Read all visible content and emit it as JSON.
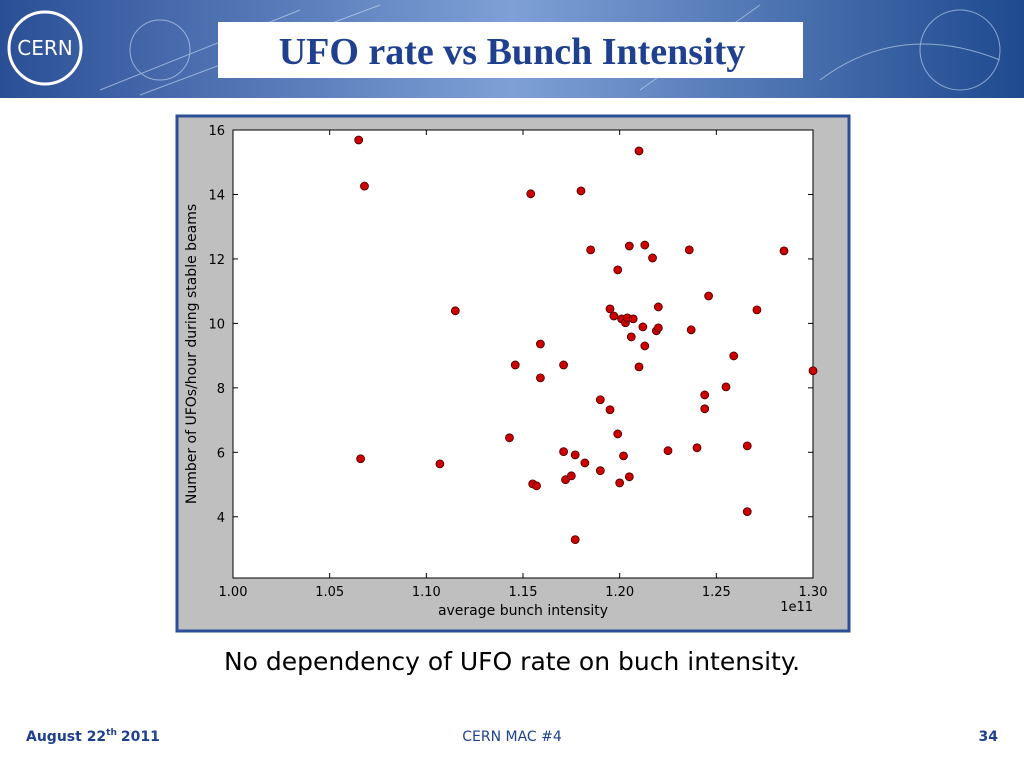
{
  "slide": {
    "title": "UFO rate vs Bunch Intensity",
    "logo": "CERN",
    "caption": "No dependency of UFO rate on buch intensity.",
    "footer": {
      "date": [
        "August 22",
        "th",
        "2011"
      ],
      "center": "CERN MAC #4",
      "page": "34"
    }
  },
  "chart_data": {
    "type": "scatter",
    "color": "#cc0000",
    "xlabel": "average bunch intensity",
    "ylabel": "Number of UFOs/hour during stable beams",
    "x_offset_label": "1e11",
    "xlim": [
      1.0,
      1.3
    ],
    "ylim": [
      2.1,
      16
    ],
    "xticks": [
      {
        "value": 1.0,
        "label": "1.00"
      },
      {
        "value": 1.05,
        "label": "1.05"
      },
      {
        "value": 1.1,
        "label": "1.10"
      },
      {
        "value": 1.15,
        "label": "1.15"
      },
      {
        "value": 1.2,
        "label": "1.20"
      },
      {
        "value": 1.25,
        "label": "1.25"
      },
      {
        "value": 1.3,
        "label": "1.30"
      }
    ],
    "yticks": [
      4,
      6,
      8,
      10,
      12,
      14,
      16
    ],
    "x": [
      1.065,
      1.068,
      1.066,
      1.107,
      1.115,
      1.143,
      1.146,
      1.154,
      1.155,
      1.157,
      1.159,
      1.159,
      1.171,
      1.171,
      1.172,
      1.175,
      1.177,
      1.177,
      1.18,
      1.182,
      1.185,
      1.19,
      1.19,
      1.195,
      1.195,
      1.197,
      1.199,
      1.199,
      1.2,
      1.201,
      1.202,
      1.203,
      1.204,
      1.205,
      1.205,
      1.206,
      1.207,
      1.21,
      1.21,
      1.212,
      1.213,
      1.213,
      1.217,
      1.219,
      1.22,
      1.22,
      1.225,
      1.236,
      1.237,
      1.24,
      1.244,
      1.244,
      1.246,
      1.255,
      1.259,
      1.266,
      1.266,
      1.271,
      1.285,
      1.3
    ],
    "y": [
      15.69,
      14.26,
      5.8,
      5.64,
      10.39,
      6.45,
      8.71,
      14.02,
      5.02,
      4.96,
      9.36,
      8.31,
      6.02,
      8.71,
      5.15,
      5.27,
      5.92,
      3.29,
      14.11,
      5.67,
      12.28,
      5.43,
      7.63,
      10.45,
      7.32,
      10.23,
      6.57,
      11.66,
      5.05,
      10.14,
      5.89,
      10.02,
      10.17,
      12.4,
      5.24,
      9.58,
      10.14,
      15.35,
      8.65,
      9.89,
      12.43,
      9.3,
      12.03,
      9.77,
      9.86,
      10.51,
      6.05,
      12.28,
      9.8,
      6.14,
      7.35,
      7.78,
      10.85,
      8.03,
      8.99,
      6.2,
      4.16,
      10.42,
      12.25,
      8.53
    ]
  }
}
